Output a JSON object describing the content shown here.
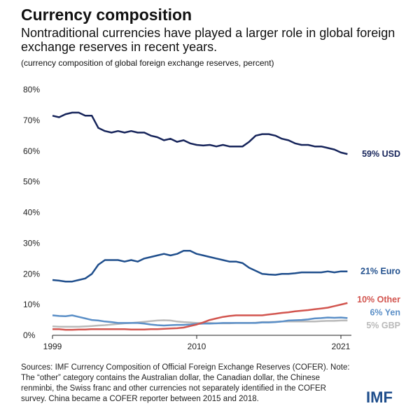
{
  "title": "Currency composition",
  "subtitle": "Nontraditional currencies have played a larger role in global foreign exchange reserves in recent years.",
  "chart_data": {
    "type": "line",
    "caption": "(currency composition of global foreign exchange reserves, percent)",
    "x": [
      1999,
      1999.5,
      2000,
      2000.5,
      2001,
      2001.5,
      2002,
      2002.5,
      2003,
      2003.5,
      2004,
      2004.5,
      2005,
      2005.5,
      2006,
      2006.5,
      2007,
      2007.5,
      2008,
      2008.5,
      2009,
      2009.5,
      2010,
      2010.5,
      2011,
      2011.5,
      2012,
      2012.5,
      2013,
      2013.5,
      2014,
      2014.5,
      2015,
      2015.5,
      2016,
      2016.5,
      2017,
      2017.5,
      2018,
      2018.5,
      2019,
      2019.5,
      2020,
      2020.5,
      2021,
      2021.5
    ],
    "xlim": [
      1999,
      2021.8
    ],
    "xticks": [
      1999,
      2010,
      2021
    ],
    "ylim": [
      0,
      80
    ],
    "yticks": [
      {
        "value": 0,
        "label": "0%"
      },
      {
        "value": 10,
        "label": "10%"
      },
      {
        "value": 20,
        "label": "20%"
      },
      {
        "value": 30,
        "label": "30%"
      },
      {
        "value": 40,
        "label": "40%"
      },
      {
        "value": 50,
        "label": "50%"
      },
      {
        "value": 60,
        "label": "60%"
      },
      {
        "value": 70,
        "label": "70%"
      },
      {
        "value": 80,
        "label": "80%"
      }
    ],
    "series": [
      {
        "name": "59% USD",
        "color": "#16245a",
        "values": [
          71.5,
          71,
          72,
          72.5,
          72.5,
          71.5,
          71.5,
          67.5,
          66.5,
          66,
          66.5,
          66,
          66.5,
          66,
          66,
          65,
          64.5,
          63.5,
          64,
          63,
          63.5,
          62.5,
          62,
          61.8,
          62,
          61.5,
          62,
          61.5,
          61.5,
          61.5,
          63,
          65,
          65.5,
          65.5,
          65,
          64,
          63.5,
          62.5,
          62,
          62,
          61.5,
          61.5,
          61,
          60.5,
          59.5,
          59
        ]
      },
      {
        "name": "21% Euro",
        "color": "#1f4e8c",
        "values": [
          18,
          17.8,
          17.5,
          17.5,
          18,
          18.5,
          20,
          23,
          24.5,
          24.5,
          24.5,
          24,
          24.5,
          24,
          25,
          25.5,
          26,
          26.5,
          26,
          26.5,
          27.5,
          27.5,
          26.5,
          26,
          25.5,
          25,
          24.5,
          24,
          24,
          23.5,
          22,
          21,
          20,
          19.8,
          19.7,
          20,
          20,
          20.2,
          20.5,
          20.5,
          20.5,
          20.5,
          20.8,
          20.5,
          20.8,
          20.8
        ]
      },
      {
        "name": "10% Other",
        "color": "#d2554f",
        "values": [
          2,
          2,
          1.8,
          1.8,
          1.9,
          1.9,
          2,
          2,
          2,
          2,
          2,
          2,
          1.9,
          1.9,
          1.9,
          2,
          2,
          2.1,
          2.2,
          2.3,
          2.5,
          3,
          3.5,
          4.2,
          5,
          5.5,
          6,
          6.3,
          6.5,
          6.5,
          6.5,
          6.5,
          6.5,
          6.8,
          7,
          7.3,
          7.5,
          7.8,
          8,
          8.2,
          8.5,
          8.7,
          9,
          9.5,
          10,
          10.5
        ]
      },
      {
        "name": "6% Yen",
        "color": "#5b8fc7",
        "values": [
          6.5,
          6.3,
          6.2,
          6.5,
          6,
          5.5,
          5,
          4.8,
          4.5,
          4.3,
          4,
          4,
          4,
          4,
          3.8,
          3.5,
          3.3,
          3.2,
          3.3,
          3.4,
          3.4,
          3.5,
          3.7,
          3.8,
          3.8,
          3.9,
          4,
          4,
          4,
          4,
          4,
          4,
          4.2,
          4.2,
          4.3,
          4.5,
          4.8,
          4.9,
          5,
          5.2,
          5.5,
          5.6,
          5.8,
          5.7,
          5.8,
          5.6
        ]
      },
      {
        "name": "5% GBP",
        "color": "#b9b9b9",
        "values": [
          2.9,
          2.8,
          2.8,
          2.8,
          2.8,
          2.9,
          3,
          3.2,
          3.3,
          3.5,
          3.7,
          3.9,
          4,
          4.2,
          4.4,
          4.6,
          4.8,
          4.9,
          4.8,
          4.5,
          4.3,
          4.2,
          4,
          4,
          4,
          3.9,
          3.9,
          3.9,
          4,
          4,
          4,
          4.1,
          4.3,
          4.3,
          4.4,
          4.5,
          4.5,
          4.5,
          4.5,
          4.5,
          4.5,
          4.6,
          4.7,
          4.7,
          4.8,
          4.8
        ]
      }
    ],
    "note": "Sources: IMF Currency Composition of Official Foreign Exchange Reserves (COFER). Note: The “other” category contains the Australian dollar, the Canadian dollar, the Chinese renminbi, the Swiss franc and other currencies not separately identified in the COFER survey. China became a COFER reporter between 2015 and 2018.",
    "logo": "IMF"
  }
}
